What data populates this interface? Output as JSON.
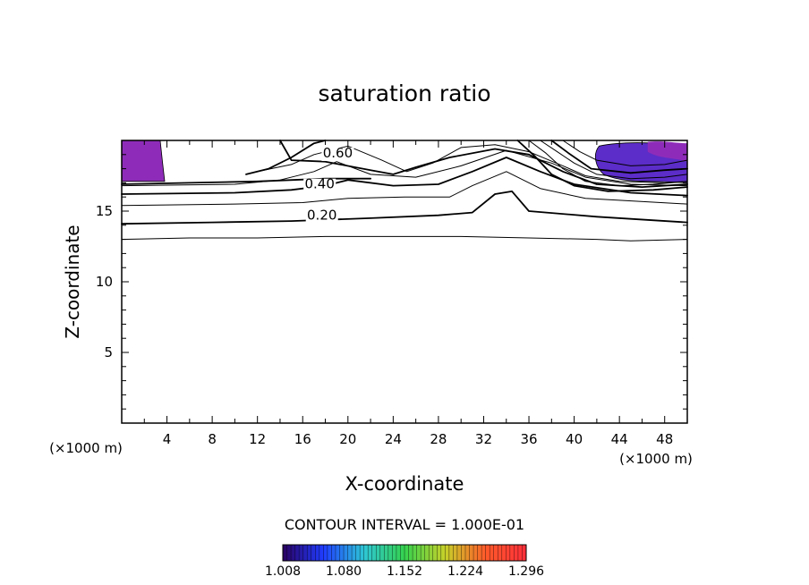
{
  "chart_data": {
    "type": "contour",
    "title": "saturation ratio",
    "xlabel": "X-coordinate",
    "ylabel": "Z-coordinate",
    "x_unit": "(×1000 m)",
    "xlim": [
      0,
      50
    ],
    "ylim": [
      0,
      20
    ],
    "x_ticks": [
      4,
      8,
      12,
      16,
      20,
      24,
      28,
      32,
      36,
      40,
      44,
      48
    ],
    "y_ticks": [
      5,
      10,
      15
    ],
    "contour_interval_text": "CONTOUR INTERVAL = 1.000E-01",
    "contour_labels": [
      "0.60",
      "0.40",
      "0.20"
    ],
    "colorbar": {
      "ticks": [
        "1.008",
        "1.080",
        "1.152",
        "1.224",
        "1.296"
      ],
      "colors": [
        "#2a0060",
        "#1f3cff",
        "#2ec6d6",
        "#35d24f",
        "#c7d12a",
        "#ff5a2a",
        "#ff2f3a"
      ]
    },
    "fill_color": "#8e2cb9",
    "contours": [
      {
        "level": 0.1,
        "points": [
          [
            0,
            13.0
          ],
          [
            6,
            13.1
          ],
          [
            12,
            13.1
          ],
          [
            18,
            13.2
          ],
          [
            24,
            13.2
          ],
          [
            30,
            13.2
          ],
          [
            36,
            13.1
          ],
          [
            42,
            13.0
          ],
          [
            45,
            12.9
          ],
          [
            50,
            13.0
          ]
        ]
      },
      {
        "level": 0.2,
        "points": [
          [
            0,
            14.1
          ],
          [
            8,
            14.2
          ],
          [
            15,
            14.3
          ],
          [
            22,
            14.5
          ],
          [
            28,
            14.7
          ],
          [
            31,
            14.9
          ],
          [
            33,
            16.2
          ],
          [
            34.5,
            16.4
          ],
          [
            36,
            15.0
          ],
          [
            42,
            14.6
          ],
          [
            50,
            14.2
          ]
        ]
      },
      {
        "level": 0.3,
        "points": [
          [
            0,
            15.4
          ],
          [
            10,
            15.5
          ],
          [
            16,
            15.6
          ],
          [
            20,
            15.9
          ],
          [
            25,
            16.0
          ],
          [
            29,
            16.0
          ],
          [
            31,
            16.8
          ],
          [
            34,
            17.8
          ],
          [
            37,
            16.6
          ],
          [
            41,
            15.9
          ],
          [
            50,
            15.5
          ]
        ]
      },
      {
        "level": 0.4,
        "points": [
          [
            0,
            16.2
          ],
          [
            10,
            16.3
          ],
          [
            15,
            16.5
          ],
          [
            18,
            16.8
          ],
          [
            20,
            17.2
          ],
          [
            24,
            16.8
          ],
          [
            28,
            16.9
          ],
          [
            31,
            17.8
          ],
          [
            34,
            18.8
          ],
          [
            37,
            17.8
          ],
          [
            40,
            16.9
          ],
          [
            45,
            16.3
          ],
          [
            50,
            16.1
          ]
        ]
      },
      {
        "level": 0.5,
        "points": [
          [
            0,
            16.8
          ],
          [
            10,
            16.9
          ],
          [
            14,
            17.2
          ],
          [
            17,
            17.8
          ],
          [
            19,
            18.5
          ],
          [
            22,
            17.6
          ],
          [
            26,
            17.4
          ],
          [
            30,
            18.2
          ],
          [
            34,
            19.3
          ],
          [
            38,
            18.4
          ],
          [
            41,
            17.4
          ],
          [
            45,
            16.9
          ],
          [
            50,
            16.8
          ]
        ]
      },
      {
        "level": 0.6,
        "points": [
          [
            14,
            20.0
          ],
          [
            15,
            18.6
          ],
          [
            18,
            18.5
          ],
          [
            22,
            17.9
          ],
          [
            24,
            17.6
          ],
          [
            26,
            18.1
          ],
          [
            29,
            18.8
          ],
          [
            33,
            19.4
          ],
          [
            36,
            19.0
          ],
          [
            39,
            17.8
          ],
          [
            42,
            16.9
          ],
          [
            46,
            16.7
          ],
          [
            50,
            16.9
          ]
        ]
      },
      {
        "level": 0.7,
        "points": [
          [
            12,
            17.8
          ],
          [
            15,
            18.3
          ],
          [
            17,
            19.0
          ],
          [
            20,
            19.6
          ],
          [
            23,
            18.6
          ],
          [
            25.2,
            17.8
          ],
          [
            27.5,
            18.4
          ],
          [
            30,
            19.5
          ],
          [
            33,
            19.7
          ],
          [
            36,
            19.2
          ],
          [
            39,
            18.2
          ],
          [
            41,
            17.5
          ],
          [
            44,
            17.1
          ],
          [
            48,
            17.0
          ],
          [
            50,
            17.1
          ]
        ]
      },
      {
        "level": 0.8,
        "points": [
          [
            11,
            17.6
          ],
          [
            13,
            18.0
          ],
          [
            15,
            18.8
          ],
          [
            17,
            19.8
          ],
          [
            18,
            20.0
          ]
        ]
      },
      {
        "level": 0.9,
        "points": [
          [
            37,
            20.0
          ],
          [
            38.5,
            19.2
          ],
          [
            40,
            18.4
          ],
          [
            42,
            17.6
          ],
          [
            45,
            17.3
          ],
          [
            48,
            17.4
          ],
          [
            50,
            17.6
          ]
        ]
      },
      {
        "level": 1.0,
        "points": [
          [
            0,
            16.9
          ],
          [
            6,
            17.0
          ],
          [
            12,
            17.1
          ],
          [
            18,
            17.3
          ],
          [
            22,
            17.3
          ]
        ]
      },
      {
        "level": 1.1,
        "points": [
          [
            39,
            20.0
          ],
          [
            40.5,
            19.2
          ],
          [
            42,
            18.6
          ],
          [
            45,
            18.2
          ],
          [
            48,
            18.3
          ],
          [
            50,
            18.6
          ]
        ]
      },
      {
        "level": 1.2,
        "points": [
          [
            38,
            20.0
          ],
          [
            39.5,
            19.1
          ],
          [
            41.5,
            18.0
          ],
          [
            45,
            17.7
          ],
          [
            48,
            17.9
          ],
          [
            50,
            18.0
          ]
        ]
      },
      {
        "level": 1.3,
        "points": [
          [
            36,
            20.0
          ],
          [
            37.5,
            19.1
          ],
          [
            39,
            18.0
          ],
          [
            41,
            17.1
          ],
          [
            44,
            16.8
          ],
          [
            47,
            16.9
          ],
          [
            50,
            17.1
          ]
        ]
      },
      {
        "level": 1.4,
        "points": [
          [
            35,
            20.0
          ],
          [
            36.5,
            18.9
          ],
          [
            38,
            17.6
          ],
          [
            40,
            16.8
          ],
          [
            43,
            16.4
          ],
          [
            47,
            16.5
          ],
          [
            50,
            16.7
          ]
        ]
      }
    ]
  }
}
